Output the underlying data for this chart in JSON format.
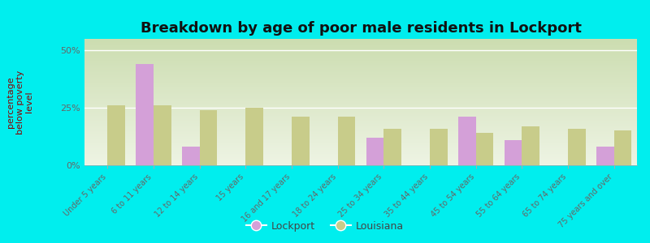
{
  "title": "Breakdown by age of poor male residents in Lockport",
  "ylabel": "percentage\nbelow poverty\nlevel",
  "categories": [
    "Under 5 years",
    "6 to 11 years",
    "12 to 14 years",
    "15 years",
    "16 and 17 years",
    "18 to 24 years",
    "25 to 34 years",
    "35 to 44 years",
    "45 to 54 years",
    "55 to 64 years",
    "65 to 74 years",
    "75 years and over"
  ],
  "lockport_values": [
    0,
    44,
    8,
    0,
    0,
    0,
    12,
    0,
    21,
    11,
    0,
    8
  ],
  "louisiana_values": [
    26,
    26,
    24,
    25,
    21,
    21,
    16,
    16,
    14,
    17,
    16,
    15
  ],
  "lockport_color": "#d4a0d8",
  "louisiana_color": "#c8cc8a",
  "background_color": "#00eeee",
  "grad_top": "#ccddb0",
  "grad_bottom": "#eef4e4",
  "ylim": [
    0,
    55
  ],
  "yticks": [
    0,
    25,
    50
  ],
  "ytick_labels": [
    "0%",
    "25%",
    "50%"
  ],
  "bar_width": 0.38,
  "title_fontsize": 13,
  "axis_label_fontsize": 8,
  "tick_fontsize": 7,
  "legend_fontsize": 9
}
